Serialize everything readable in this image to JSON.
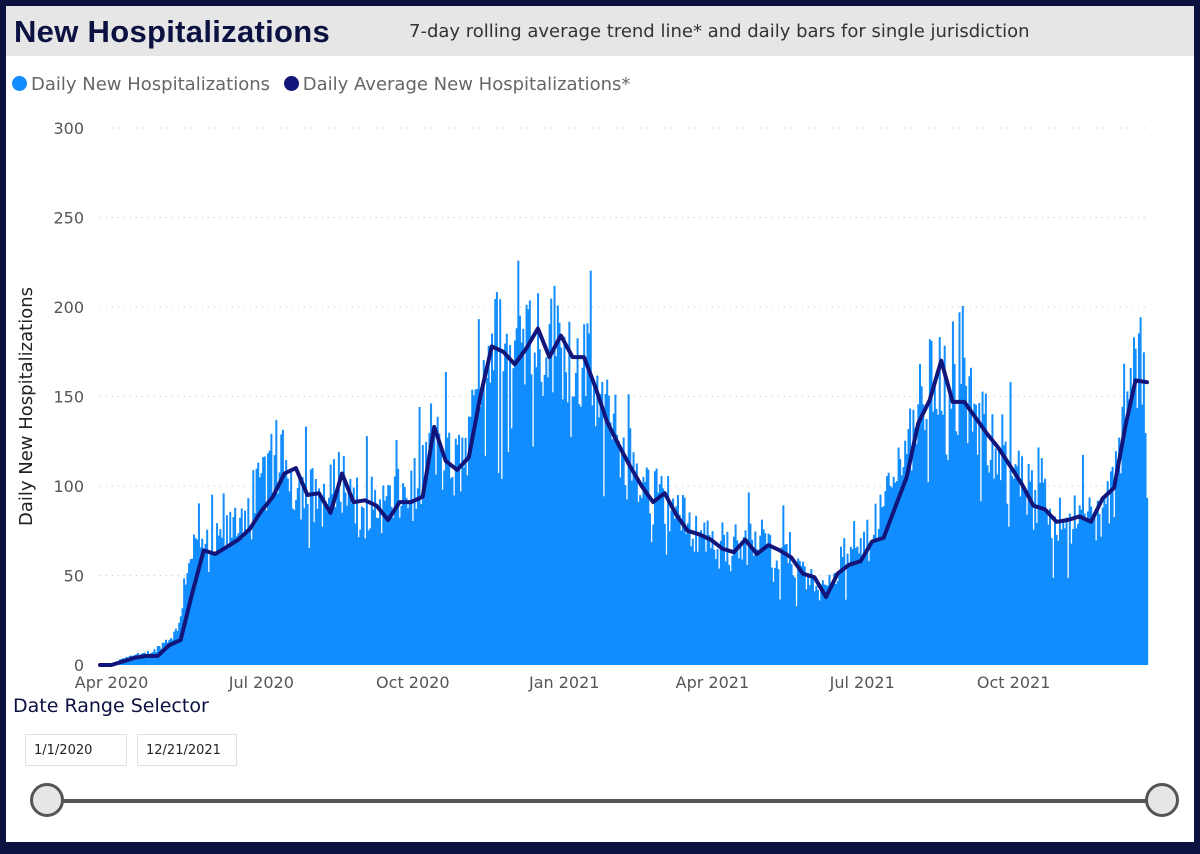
{
  "header": {
    "title": "New Hospitalizations",
    "subtitle": "7-day rolling average trend line* and daily bars for single jurisdiction"
  },
  "legend": {
    "items": [
      {
        "label": "Daily New Hospitalizations",
        "color": "#118dff"
      },
      {
        "label": "Daily Average New Hospitalizations*",
        "color": "#12157a"
      }
    ]
  },
  "chart_data": {
    "type": "bar",
    "title": "New Hospitalizations",
    "subtitle": "7-day rolling average trend line* and daily bars for single jurisdiction",
    "xlabel": "",
    "ylabel": "Daily New Hospitalizations",
    "ylim": [
      0,
      300
    ],
    "yticks": [
      0,
      50,
      100,
      150,
      200,
      250,
      300
    ],
    "xticks": [
      "Apr 2020",
      "Jul 2020",
      "Oct 2020",
      "Jan 2021",
      "Apr 2021",
      "Jul 2021",
      "Oct 2021"
    ],
    "x_range": [
      "2020-03-25",
      "2021-12-21"
    ],
    "grid": "horizontal dotted",
    "legend_position": "top-left",
    "series": [
      {
        "name": "Daily New Hospitalizations",
        "type": "bar",
        "color": "#118dff",
        "points": [
          [
            "2020-03-25",
            0
          ],
          [
            "2020-04-01",
            1
          ],
          [
            "2020-04-06",
            3
          ],
          [
            "2020-04-10",
            5
          ],
          [
            "2020-04-20",
            6
          ],
          [
            "2020-04-27",
            8
          ],
          [
            "2020-05-05",
            14
          ],
          [
            "2020-05-12",
            20
          ],
          [
            "2020-05-15",
            45
          ],
          [
            "2020-05-19",
            65
          ],
          [
            "2020-05-25",
            66
          ],
          [
            "2020-06-01",
            65
          ],
          [
            "2020-06-10",
            72
          ],
          [
            "2020-06-20",
            85
          ],
          [
            "2020-06-28",
            95
          ],
          [
            "2020-07-07",
            110
          ],
          [
            "2020-07-14",
            112
          ],
          [
            "2020-07-22",
            100
          ],
          [
            "2020-08-01",
            95
          ],
          [
            "2020-08-10",
            92
          ],
          [
            "2020-08-17",
            106
          ],
          [
            "2020-08-24",
            97
          ],
          [
            "2020-09-01",
            92
          ],
          [
            "2020-09-10",
            88
          ],
          [
            "2020-09-20",
            92
          ],
          [
            "2020-09-28",
            96
          ],
          [
            "2020-10-05",
            100
          ],
          [
            "2020-10-12",
            128
          ],
          [
            "2020-10-19",
            115
          ],
          [
            "2020-10-26",
            110
          ],
          [
            "2020-11-03",
            118
          ],
          [
            "2020-11-10",
            155
          ],
          [
            "2020-11-15",
            178
          ],
          [
            "2020-11-21",
            180
          ],
          [
            "2020-11-28",
            172
          ],
          [
            "2020-12-06",
            182
          ],
          [
            "2020-12-13",
            190
          ],
          [
            "2020-12-20",
            178
          ],
          [
            "2020-12-27",
            184
          ],
          [
            "2021-01-03",
            176
          ],
          [
            "2021-01-10",
            172
          ],
          [
            "2021-01-18",
            158
          ],
          [
            "2021-01-25",
            140
          ],
          [
            "2021-02-03",
            126
          ],
          [
            "2021-02-12",
            112
          ],
          [
            "2021-02-20",
            100
          ],
          [
            "2021-02-28",
            94
          ],
          [
            "2021-03-08",
            90
          ],
          [
            "2021-03-17",
            78
          ],
          [
            "2021-03-27",
            72
          ],
          [
            "2021-04-05",
            69
          ],
          [
            "2021-04-14",
            67
          ],
          [
            "2021-04-22",
            68
          ],
          [
            "2021-05-01",
            66
          ],
          [
            "2021-05-10",
            65
          ],
          [
            "2021-05-18",
            58
          ],
          [
            "2021-05-26",
            50
          ],
          [
            "2021-06-01",
            45
          ],
          [
            "2021-06-05",
            42
          ],
          [
            "2021-06-10",
            50
          ],
          [
            "2021-06-18",
            56
          ],
          [
            "2021-06-26",
            60
          ],
          [
            "2021-07-05",
            70
          ],
          [
            "2021-07-14",
            90
          ],
          [
            "2021-07-24",
            112
          ],
          [
            "2021-08-02",
            138
          ],
          [
            "2021-08-11",
            158
          ],
          [
            "2021-08-17",
            168
          ],
          [
            "2021-08-22",
            150
          ],
          [
            "2021-09-01",
            146
          ],
          [
            "2021-09-12",
            132
          ],
          [
            "2021-09-25",
            118
          ],
          [
            "2021-10-06",
            100
          ],
          [
            "2021-10-16",
            90
          ],
          [
            "2021-10-28",
            82
          ],
          [
            "2021-11-07",
            82
          ],
          [
            "2021-11-16",
            84
          ],
          [
            "2021-11-24",
            82
          ],
          [
            "2021-12-01",
            100
          ],
          [
            "2021-12-08",
            138
          ],
          [
            "2021-12-14",
            168
          ],
          [
            "2021-12-18",
            165
          ],
          [
            "2021-12-21",
            130
          ]
        ]
      },
      {
        "name": "Daily Average New Hospitalizations*",
        "type": "line",
        "color": "#12157a",
        "points": [
          [
            "2020-03-25",
            0
          ],
          [
            "2020-04-01",
            0
          ],
          [
            "2020-04-08",
            2
          ],
          [
            "2020-04-15",
            4
          ],
          [
            "2020-04-22",
            5
          ],
          [
            "2020-04-29",
            5
          ],
          [
            "2020-05-06",
            11
          ],
          [
            "2020-05-13",
            14
          ],
          [
            "2020-05-20",
            40
          ],
          [
            "2020-05-27",
            64
          ],
          [
            "2020-06-03",
            62
          ],
          [
            "2020-06-10",
            66
          ],
          [
            "2020-06-17",
            70
          ],
          [
            "2020-06-24",
            76
          ],
          [
            "2020-07-01",
            86
          ],
          [
            "2020-07-08",
            94
          ],
          [
            "2020-07-15",
            107
          ],
          [
            "2020-07-22",
            110
          ],
          [
            "2020-07-29",
            95
          ],
          [
            "2020-08-05",
            96
          ],
          [
            "2020-08-12",
            85
          ],
          [
            "2020-08-19",
            107
          ],
          [
            "2020-08-26",
            91
          ],
          [
            "2020-09-02",
            92
          ],
          [
            "2020-09-09",
            89
          ],
          [
            "2020-09-16",
            81
          ],
          [
            "2020-09-23",
            91
          ],
          [
            "2020-09-30",
            91
          ],
          [
            "2020-10-07",
            94
          ],
          [
            "2020-10-14",
            133
          ],
          [
            "2020-10-21",
            114
          ],
          [
            "2020-10-28",
            109
          ],
          [
            "2020-11-04",
            116
          ],
          [
            "2020-11-11",
            150
          ],
          [
            "2020-11-18",
            178
          ],
          [
            "2020-11-25",
            175
          ],
          [
            "2020-12-02",
            168
          ],
          [
            "2020-12-09",
            177
          ],
          [
            "2020-12-16",
            188
          ],
          [
            "2020-12-23",
            172
          ],
          [
            "2020-12-30",
            184
          ],
          [
            "2021-01-06",
            172
          ],
          [
            "2021-01-13",
            172
          ],
          [
            "2021-01-20",
            155
          ],
          [
            "2021-01-27",
            136
          ],
          [
            "2021-02-03",
            123
          ],
          [
            "2021-02-10",
            111
          ],
          [
            "2021-02-17",
            100
          ],
          [
            "2021-02-24",
            91
          ],
          [
            "2021-03-03",
            96
          ],
          [
            "2021-03-10",
            84
          ],
          [
            "2021-03-17",
            75
          ],
          [
            "2021-03-24",
            73
          ],
          [
            "2021-03-31",
            70
          ],
          [
            "2021-04-07",
            65
          ],
          [
            "2021-04-14",
            63
          ],
          [
            "2021-04-21",
            70
          ],
          [
            "2021-04-28",
            62
          ],
          [
            "2021-05-05",
            67
          ],
          [
            "2021-05-12",
            64
          ],
          [
            "2021-05-19",
            60
          ],
          [
            "2021-05-26",
            51
          ],
          [
            "2021-06-02",
            49
          ],
          [
            "2021-06-09",
            38
          ],
          [
            "2021-06-16",
            51
          ],
          [
            "2021-06-23",
            56
          ],
          [
            "2021-06-30",
            58
          ],
          [
            "2021-07-07",
            69
          ],
          [
            "2021-07-14",
            71
          ],
          [
            "2021-07-21",
            88
          ],
          [
            "2021-07-28",
            105
          ],
          [
            "2021-08-04",
            135
          ],
          [
            "2021-08-11",
            148
          ],
          [
            "2021-08-18",
            170
          ],
          [
            "2021-08-25",
            147
          ],
          [
            "2021-09-01",
            147
          ],
          [
            "2021-09-08",
            138
          ],
          [
            "2021-09-15",
            129
          ],
          [
            "2021-09-22",
            121
          ],
          [
            "2021-09-29",
            111
          ],
          [
            "2021-10-06",
            101
          ],
          [
            "2021-10-13",
            89
          ],
          [
            "2021-10-20",
            87
          ],
          [
            "2021-10-27",
            80
          ],
          [
            "2021-11-03",
            81
          ],
          [
            "2021-11-10",
            83
          ],
          [
            "2021-11-17",
            80
          ],
          [
            "2021-11-24",
            93
          ],
          [
            "2021-12-01",
            99
          ],
          [
            "2021-12-08",
            134
          ],
          [
            "2021-12-14",
            159
          ],
          [
            "2021-12-21",
            158
          ]
        ]
      }
    ]
  },
  "date_range": {
    "label": "Date Range Selector",
    "start": "1/1/2020",
    "end": "12/21/2021"
  }
}
